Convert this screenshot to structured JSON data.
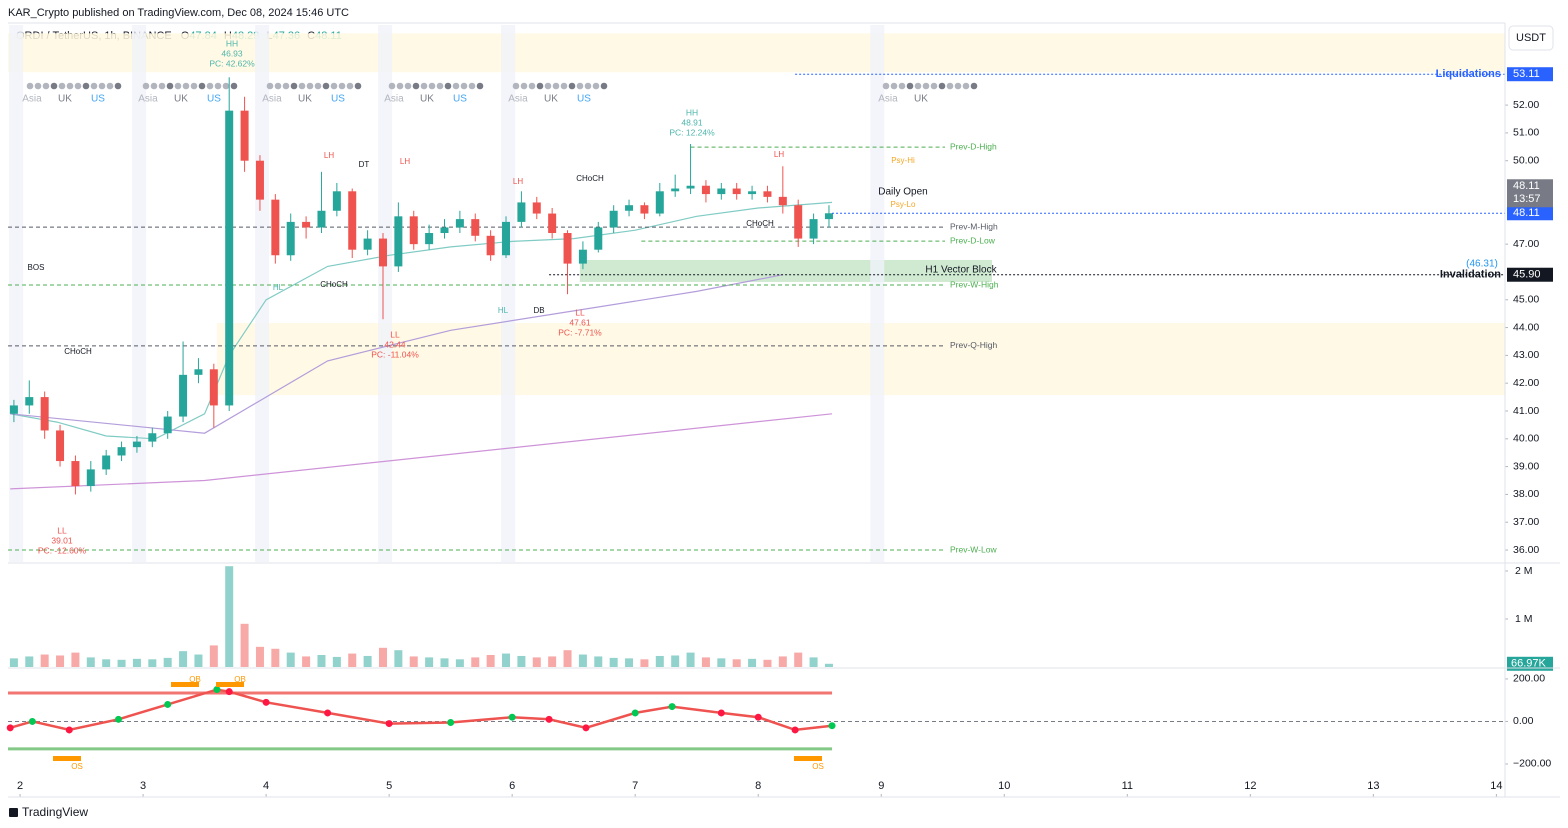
{
  "header": {
    "publisher": "KAR_Crypto published on TradingView.com, Dec 08, 2024 15:46 UTC",
    "symbol": "ORDI / TetherUS, 1h, BINANCE",
    "ohlc_letters": [
      "O",
      "H",
      "L",
      "C"
    ],
    "ohlc": [
      47.84,
      48.29,
      47.36,
      48.11
    ],
    "currency": "USDT"
  },
  "footer": {
    "brand": "TradingView"
  },
  "chart_data": [
    {
      "type": "candlestick",
      "x": [
        1.95,
        2.075,
        2.2,
        2.325,
        2.45,
        2.575,
        2.7,
        2.825,
        2.95,
        3.075,
        3.2,
        3.325,
        3.45,
        3.575,
        3.7,
        3.825,
        3.95,
        4.075,
        4.2,
        4.325,
        4.45,
        4.575,
        4.7,
        4.825,
        4.95,
        5.075,
        5.2,
        5.325,
        5.45,
        5.575,
        5.7,
        5.825,
        5.95,
        6.075,
        6.2,
        6.325,
        6.45,
        6.575,
        6.7,
        6.825,
        6.95,
        7.075,
        7.2,
        7.325,
        7.45,
        7.575,
        7.7,
        7.825,
        7.95,
        8.075,
        8.2,
        8.325,
        8.45,
        8.575
      ],
      "open": [
        40.9,
        41.2,
        41.5,
        40.3,
        39.2,
        38.3,
        38.9,
        39.4,
        39.7,
        39.9,
        40.2,
        40.8,
        42.3,
        42.5,
        41.2,
        51.8,
        50.0,
        48.6,
        46.6,
        47.8,
        47.6,
        48.2,
        48.9,
        46.8,
        47.2,
        46.2,
        48.0,
        47.0,
        47.4,
        47.6,
        47.9,
        47.3,
        46.6,
        47.8,
        48.5,
        48.1,
        47.4,
        46.3,
        46.8,
        47.6,
        48.2,
        48.4,
        48.1,
        48.9,
        49.0,
        49.1,
        48.8,
        49.0,
        48.8,
        48.9,
        48.7,
        48.4,
        47.2,
        47.9
      ],
      "high": [
        41.4,
        42.1,
        41.7,
        40.5,
        39.4,
        39.2,
        39.6,
        39.9,
        40.1,
        40.4,
        41.0,
        43.5,
        42.9,
        42.7,
        53.0,
        52.3,
        50.2,
        48.8,
        48.1,
        48.0,
        49.6,
        49.2,
        49.0,
        47.5,
        47.4,
        48.5,
        48.2,
        47.7,
        47.9,
        48.2,
        48.1,
        47.5,
        48.0,
        48.9,
        48.7,
        48.3,
        47.5,
        47.1,
        47.8,
        48.4,
        48.6,
        48.5,
        49.2,
        49.5,
        50.6,
        49.3,
        49.2,
        49.2,
        49.1,
        49.1,
        49.8,
        48.6,
        48.1,
        48.4
      ],
      "low": [
        40.6,
        40.9,
        40.0,
        39.0,
        38.0,
        38.1,
        38.7,
        39.2,
        39.5,
        39.7,
        40.0,
        40.6,
        42.0,
        40.4,
        41.0,
        49.6,
        48.2,
        46.3,
        46.4,
        47.2,
        47.4,
        48.0,
        46.5,
        46.6,
        44.3,
        46.0,
        46.8,
        46.8,
        47.2,
        47.4,
        47.1,
        46.4,
        46.5,
        47.6,
        47.9,
        47.2,
        45.2,
        46.1,
        46.7,
        47.4,
        48.0,
        47.9,
        48.0,
        48.7,
        48.8,
        48.5,
        48.6,
        48.6,
        48.6,
        48.5,
        48.1,
        46.9,
        47.0,
        47.6
      ],
      "close": [
        41.2,
        41.5,
        40.3,
        39.2,
        38.3,
        38.9,
        39.4,
        39.7,
        39.9,
        40.2,
        40.8,
        42.3,
        42.5,
        41.2,
        51.8,
        50.0,
        48.6,
        46.6,
        47.8,
        47.6,
        48.2,
        48.9,
        46.8,
        47.2,
        46.2,
        48.0,
        47.0,
        47.4,
        47.6,
        47.9,
        47.3,
        46.6,
        47.8,
        48.5,
        48.1,
        47.4,
        46.3,
        46.8,
        47.6,
        48.2,
        48.4,
        48.1,
        48.9,
        49.0,
        49.1,
        48.8,
        49.0,
        48.8,
        48.9,
        48.7,
        48.4,
        47.2,
        47.9,
        48.11
      ],
      "up_color": "#26a69a",
      "down_color": "#ef5350",
      "xlim": [
        1.902,
        14.07
      ],
      "xticks": [
        2,
        3,
        4,
        5,
        6,
        7,
        8,
        9,
        10,
        11,
        12,
        13,
        14
      ],
      "ylim": [
        35.57,
        54.88
      ],
      "yticks": [
        {
          "value": 36,
          "label": "36.00"
        },
        {
          "value": 37,
          "label": "37.00"
        },
        {
          "value": 38,
          "label": "38.00"
        },
        {
          "value": 39,
          "label": "39.00"
        },
        {
          "value": 40,
          "label": "40.00"
        },
        {
          "value": 41,
          "label": "41.00"
        },
        {
          "value": 42,
          "label": "42.00"
        },
        {
          "value": 43,
          "label": "43.00"
        },
        {
          "value": 44,
          "label": "44.00"
        },
        {
          "value": 45,
          "label": "45.00"
        },
        {
          "value": 47,
          "label": "47.00"
        },
        {
          "value": 50,
          "label": "50.00"
        },
        {
          "value": 51,
          "label": "51.00"
        },
        {
          "value": 52,
          "label": "52.00"
        }
      ],
      "lines": [
        {
          "color": "#80cbc4",
          "x": [
            1.92,
            2.3,
            2.7,
            3.1,
            3.5,
            3.7,
            4.0,
            4.5,
            5.0,
            5.5,
            6.0,
            6.5,
            7.0,
            7.5,
            8.0,
            8.6
          ],
          "values": [
            40.9,
            40.6,
            40.1,
            40.0,
            40.9,
            43.0,
            45.0,
            46.2,
            46.6,
            46.9,
            47.1,
            47.2,
            47.5,
            48.0,
            48.3,
            48.5
          ]
        },
        {
          "color": "#b39ddb",
          "x": [
            1.92,
            3.5,
            4.5,
            5.5,
            6.5,
            7.5,
            8.2
          ],
          "values": [
            40.9,
            40.2,
            42.8,
            43.9,
            44.6,
            45.3,
            45.9
          ]
        },
        {
          "color": "#ce93d8",
          "x": [
            1.92,
            3.5,
            8.6
          ],
          "values": [
            38.2,
            38.5,
            40.9
          ]
        }
      ],
      "zones": [
        {
          "low": 53.18,
          "high": 54.58,
          "from": 1.902,
          "to": 14.07,
          "color": "#fff8e1"
        },
        {
          "low": 41.57,
          "high": 44.16,
          "from": 3.6,
          "to": 14.07,
          "color": "#fff8e1"
        },
        {
          "low": 45.64,
          "high": 46.43,
          "from": 6.55,
          "to": 9.9,
          "color": "#c8e6c9"
        }
      ],
      "levels": [
        {
          "name": "Prev-D-High",
          "value": 50.49,
          "from": 7.45,
          "color": "#4caf50"
        },
        {
          "name": "Prev-M-High",
          "value": 47.61,
          "from": 1.902,
          "color": "#555a66"
        },
        {
          "name": "Prev-D-Low",
          "value": 47.11,
          "from": 7.05,
          "color": "#4caf50"
        },
        {
          "name": "Prev-W-High",
          "value": 45.53,
          "from": 1.902,
          "color": "#4caf50"
        },
        {
          "name": "Prev-Q-High",
          "value": 43.34,
          "from": 1.902,
          "color": "#555a66"
        },
        {
          "name": "Prev-W-Low",
          "value": 36.0,
          "from": 1.902,
          "color": "#4caf50"
        }
      ],
      "price_labels": [
        {
          "text": "Liquidations",
          "value": 53.11,
          "label": "53.11",
          "from": 8.3,
          "color": "#2962ff"
        },
        {
          "value": 48.11,
          "label": "48.11",
          "from": 8.6,
          "color": "#2962ff"
        },
        {
          "text": "Invalidation",
          "value": 45.9,
          "label": "45.90",
          "from": 6.3,
          "color": "#131722"
        }
      ],
      "countdown": "13:57",
      "sessions": [
        "Asia",
        "UK",
        "US"
      ],
      "annotations": [
        {
          "lines": [
            "HH",
            "46.93",
            "PC: 42.62%"
          ],
          "color": "#4db6ac"
        },
        {
          "lines": [
            "LL",
            "39.01",
            "PC: -12.60%"
          ],
          "color": "#ef5350"
        },
        {
          "lines": [
            "LH"
          ],
          "color": "#ef5350"
        },
        {
          "lines": [
            "DT"
          ],
          "color": "#131722"
        },
        {
          "lines": [
            "LH"
          ],
          "color": "#ef5350"
        },
        {
          "lines": [
            "HL"
          ],
          "color": "#4db6ac"
        },
        {
          "lines": [
            "CHoCH"
          ],
          "color": "#131722"
        },
        {
          "lines": [
            "LL",
            "42.44",
            "PC: -11.04%"
          ],
          "color": "#ef5350"
        },
        {
          "lines": [
            "HL"
          ],
          "color": "#4db6ac"
        },
        {
          "lines": [
            "DB"
          ],
          "color": "#131722"
        },
        {
          "lines": [
            "LL",
            "47.61",
            "PC: -7.71%"
          ],
          "color": "#ef5350"
        },
        {
          "lines": [
            "LH"
          ],
          "color": "#ef5350"
        },
        {
          "lines": [
            "CHoCH"
          ],
          "color": "#131722"
        },
        {
          "lines": [
            "HH",
            "48.91",
            "PC: 12.24%"
          ],
          "color": "#4db6ac"
        },
        {
          "lines": [
            "LH"
          ],
          "color": "#ef5350"
        },
        {
          "lines": [
            "CHoCH"
          ],
          "color": "#131722"
        },
        {
          "lines": [
            "BOS"
          ],
          "color": "#131722"
        },
        {
          "lines": [
            "CHoCH"
          ],
          "color": "#131722"
        },
        {
          "lines": [
            "Psy-Hi"
          ],
          "color": "#f5a623"
        },
        {
          "lines": [
            "Psy-Lo"
          ],
          "color": "#f5a623"
        },
        {
          "lines": [
            "Daily Open"
          ],
          "color": "#131722"
        },
        {
          "lines": [
            "H1 Vector Block"
          ],
          "color": "#131722"
        },
        {
          "lines": [
            "(46.31)"
          ],
          "color": "#2196f3"
        }
      ]
    },
    {
      "type": "bar",
      "values": [
        180000,
        220000,
        260000,
        240000,
        300000,
        200000,
        160000,
        150000,
        170000,
        160000,
        190000,
        330000,
        260000,
        450000,
        2100000,
        900000,
        420000,
        380000,
        300000,
        220000,
        250000,
        210000,
        280000,
        230000,
        400000,
        350000,
        220000,
        200000,
        180000,
        160000,
        200000,
        250000,
        280000,
        230000,
        200000,
        220000,
        350000,
        260000,
        220000,
        190000,
        180000,
        160000,
        230000,
        240000,
        300000,
        200000,
        180000,
        160000,
        170000,
        150000,
        220000,
        300000,
        200000,
        66970
      ],
      "ylim": [
        0,
        2125000
      ],
      "yticks": [
        {
          "value": 1000000,
          "label": "1 M"
        },
        {
          "value": 2000000,
          "label": "2 M"
        }
      ],
      "last_label": {
        "value": 66970,
        "label": "66.97K",
        "color": "#26a69a"
      }
    },
    {
      "type": "line",
      "x": [
        1.92,
        2.1,
        2.4,
        2.8,
        3.2,
        3.6,
        3.7,
        4.0,
        4.5,
        5.0,
        5.5,
        6.0,
        6.3,
        6.6,
        7.0,
        7.3,
        7.7,
        8.0,
        8.3,
        8.6
      ],
      "values": [
        -30,
        0,
        -40,
        10,
        80,
        150,
        140,
        90,
        40,
        -10,
        -5,
        20,
        10,
        -30,
        40,
        70,
        40,
        20,
        -40,
        -20
      ],
      "color": "#ef5350",
      "ylim": [
        -346,
        242
      ],
      "yticks": [
        {
          "value": -200,
          "label": "−200.00"
        },
        {
          "value": 0,
          "label": "0.00"
        },
        {
          "value": 200,
          "label": "200.00"
        }
      ],
      "levels": [
        {
          "value": 134,
          "color": "#ef5350"
        },
        {
          "value": -129,
          "color": "#66bb6a"
        }
      ],
      "signals": [
        "OB",
        "OB",
        "OS",
        "OS"
      ]
    }
  ]
}
